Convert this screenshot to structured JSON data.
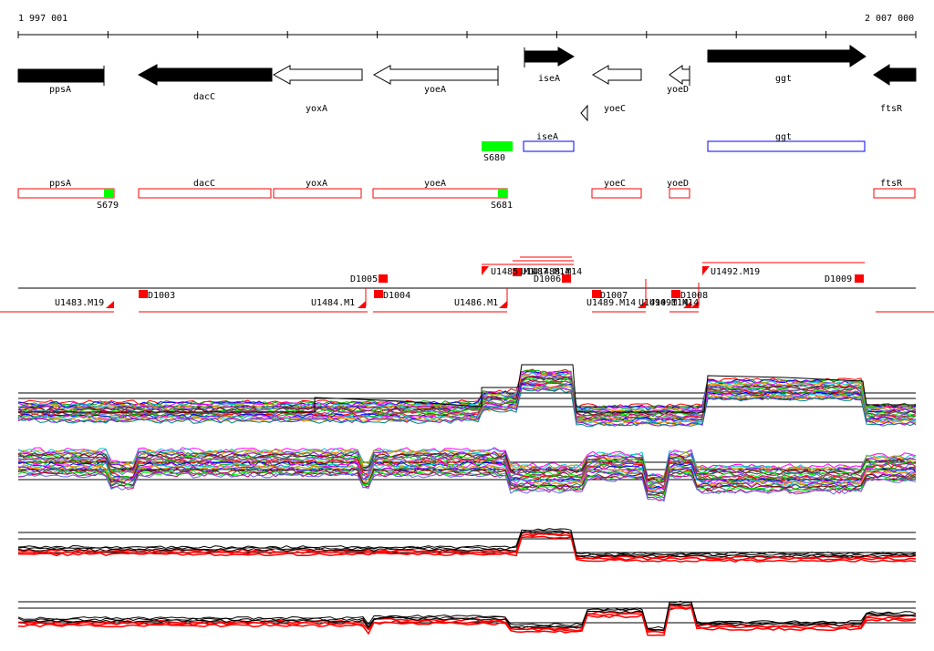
{
  "axis": {
    "start_label": "1 997 001",
    "end_label": "2 007 000"
  },
  "genes": [
    {
      "name": "ppsA",
      "strand": "+",
      "filled": true
    },
    {
      "name": "dacC",
      "strand": "-",
      "filled": true
    },
    {
      "name": "yoxA",
      "strand": "-",
      "filled": false
    },
    {
      "name": "yoeA",
      "strand": "-",
      "filled": false
    },
    {
      "name": "iseA",
      "strand": "+",
      "filled": true
    },
    {
      "name": "yoeC",
      "strand": "-",
      "filled": false
    },
    {
      "name": "yoeC",
      "strand": "-",
      "filled": false
    },
    {
      "name": "yoeD",
      "strand": "-",
      "filled": false
    },
    {
      "name": "ggt",
      "strand": "+",
      "filled": true
    },
    {
      "name": "ftsR",
      "strand": "-",
      "filled": true
    }
  ],
  "blue_boxes": [
    "iseA",
    "ggt"
  ],
  "green_boxes": [
    "S680",
    "S679",
    "S681"
  ],
  "red_boxes": [
    "ppsA",
    "dacC",
    "yoxA",
    "yoeA",
    "yoeC",
    "yoeD",
    "ftsR"
  ],
  "markers_upper": [
    "U1485.M1",
    "U1487.M14",
    "U1488.M14",
    "D1006",
    "D1005",
    "U1492.M19",
    "D1009"
  ],
  "markers_lower": [
    "U1483.M19",
    "D1003",
    "U1484.M1",
    "D1004",
    "U1486.M1",
    "D1007",
    "U1489.M14",
    "U1490.M14",
    "U1491.M14",
    "D1008"
  ],
  "colors": {
    "gene_fill": "#000000",
    "red": "#ff0000",
    "green": "#00ff00",
    "blue": "#0000ff"
  }
}
